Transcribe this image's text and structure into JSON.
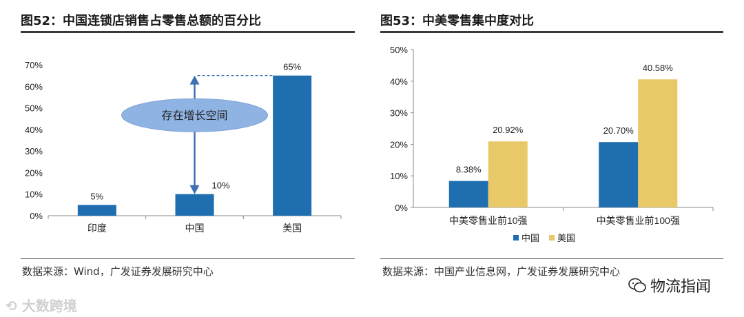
{
  "left_panel": {
    "figure_title": "图52：中国连锁店销售占零售总额的百分比",
    "source": "数据来源：Wind，广发证券发展研究中心",
    "annotation": "存在增长空间"
  },
  "right_panel": {
    "figure_title": "图53：中美零售集中度对比",
    "source": "数据来源：中国产业信息网，广发证券发展研究中心"
  },
  "watermarks": {
    "left": "大数跨境",
    "right": "物流指闻"
  },
  "colors": {
    "bar_blue": "#1f6fb0",
    "bar_gold": "#e9c86a",
    "ellipse": "#8fb3e3",
    "arrow": "#3f6fb5"
  },
  "chart_data": [
    {
      "type": "bar",
      "title": "中国连锁店销售占零售总额的百分比",
      "categories": [
        "印度",
        "中国",
        "美国"
      ],
      "values": [
        5,
        10,
        65
      ],
      "data_labels": [
        "5%",
        "10%",
        "65%"
      ],
      "yticks": [
        "0%",
        "10%",
        "20%",
        "30%",
        "40%",
        "50%",
        "60%",
        "70%"
      ],
      "ylim": [
        0,
        70
      ],
      "grid": false
    },
    {
      "type": "bar",
      "title": "中美零售集中度对比",
      "categories": [
        "中美零售业前10强",
        "中美零售业前100强"
      ],
      "series": [
        {
          "name": "中国",
          "values": [
            8.38,
            20.7
          ],
          "labels": [
            "8.38%",
            "20.70%"
          ]
        },
        {
          "name": "美国",
          "values": [
            20.92,
            40.58
          ],
          "labels": [
            "20.92%",
            "40.58%"
          ]
        }
      ],
      "yticks": [
        "0%",
        "10%",
        "20%",
        "30%",
        "40%",
        "50%"
      ],
      "ylim": [
        0,
        50
      ],
      "legend": "bottom",
      "grid": false
    }
  ]
}
